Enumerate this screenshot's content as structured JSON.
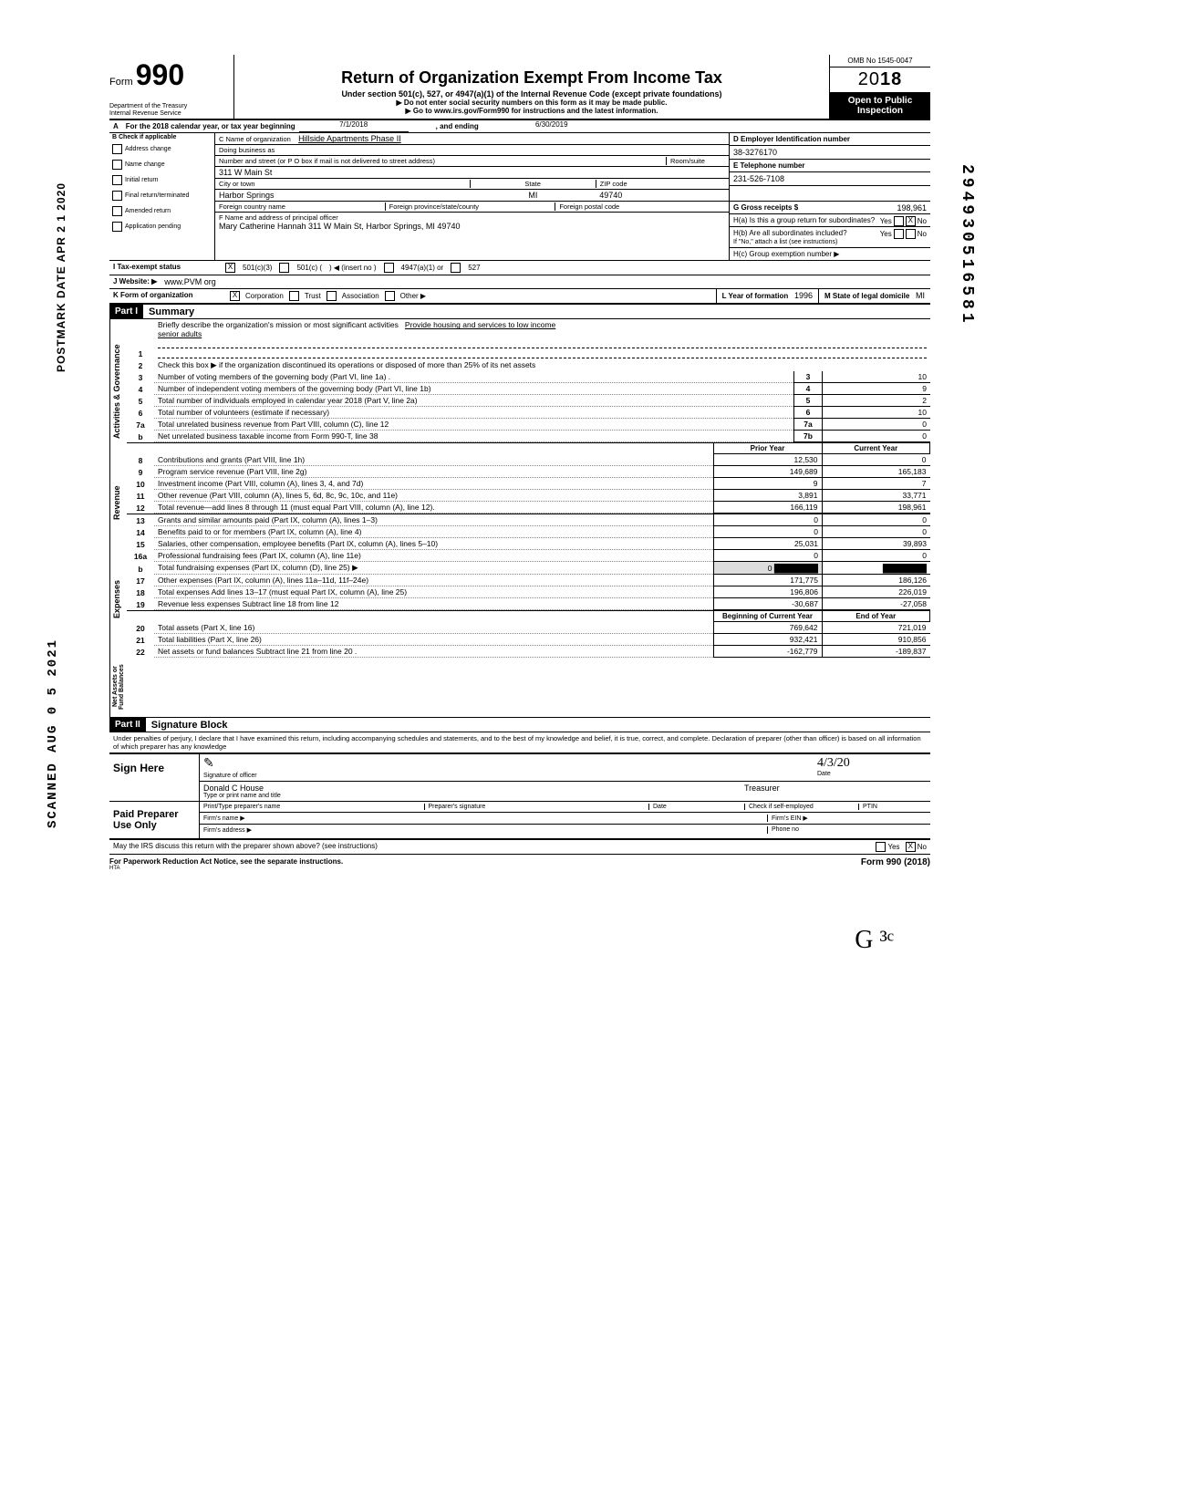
{
  "side": {
    "postmark": "POSTMARK DATE APR 2 1 2020",
    "scanned": "SCANNED AUG 0 5 2021",
    "docid": "294930516581"
  },
  "header": {
    "form_word": "Form",
    "form_num": "990",
    "dept1": "Department of the Treasury",
    "dept2": "Internal Revenue Service",
    "title": "Return of Organization Exempt From Income Tax",
    "subtitle": "Under section 501(c), 527, or 4947(a)(1) of the Internal Revenue Code (except private foundations)",
    "note1": "Do not enter social security numbers on this form as it may be made public.",
    "note2": "Go to www.irs.gov/Form990 for instructions and the latest information.",
    "omb": "OMB No 1545-0047",
    "year_prefix": "20",
    "year_bold": "18",
    "open1": "Open to Public",
    "open2": "Inspection"
  },
  "rowA": {
    "label": "A",
    "text1": "For the 2018 calendar year, or tax year beginning",
    "begin": "7/1/2018",
    "text2": ", and ending",
    "end": "6/30/2019"
  },
  "boxB": {
    "hdr": "B  Check if applicable",
    "items": [
      "Address change",
      "Name change",
      "Initial return",
      "Final return/terminated",
      "Amended return",
      "Application pending"
    ]
  },
  "boxC": {
    "c_label": "C  Name of organization",
    "org": "Hillside Apartments Phase II",
    "dba_label": "Doing business as",
    "street_label": "Number and street (or P O box if mail is not delivered to street address)",
    "room_label": "Room/suite",
    "street": "311 W Main St",
    "city_label": "City or town",
    "state_label": "State",
    "zip_label": "ZIP code",
    "city": "Harbor Springs",
    "state": "MI",
    "zip": "49740",
    "foreign_country": "Foreign country name",
    "foreign_prov": "Foreign province/state/county",
    "foreign_postal": "Foreign postal code",
    "f_label": "F  Name and address of principal officer",
    "officer": "Mary Catherine Hannah 311 W Main St, Harbor Springs, MI  49740"
  },
  "boxD": {
    "d_label": "D   Employer Identification number",
    "ein": "38-3276170",
    "e_label": "E   Telephone number",
    "phone": "231-526-7108",
    "g_label": "G   Gross receipts $",
    "gross": "198,961",
    "ha": "H(a) Is this a group return for subordinates?",
    "hb": "H(b) Are all subordinates included?",
    "hb_note": "If \"No,\" attach a list (see instructions)",
    "hc": "H(c) Group exemption number ▶"
  },
  "rowI": {
    "label": "I    Tax-exempt status",
    "opt1": "501(c)(3)",
    "opt2": "501(c)  (",
    "opt2b": ")  ◀ (insert no )",
    "opt3": "4947(a)(1) or",
    "opt4": "527"
  },
  "rowJ": {
    "label": "J  Website: ▶",
    "val": "www.PVM org"
  },
  "rowK": {
    "label": "K Form of organization",
    "opts": [
      "Corporation",
      "Trust",
      "Association",
      "Other ▶"
    ],
    "l_label": "L Year of formation",
    "l_val": "1996",
    "m_label": "M State of legal domicile",
    "m_val": "MI"
  },
  "part1": {
    "hdr": "Part I",
    "title": "Summary",
    "sections": {
      "gov": "Activities & Governance",
      "rev": "Revenue",
      "exp": "Expenses",
      "net": "Net Assets or Fund Balances"
    },
    "line1": "Briefly describe the organization's mission or most significant activities",
    "line1_val": "Provide housing and services to low income",
    "line1_val2": "senior adults",
    "line2": "Check this box  ▶        if the organization discontinued its operations or disposed of more than 25% of its net assets",
    "rows_gov": [
      {
        "n": "3",
        "t": "Number of voting members of the governing body (Part VI, line 1a) .",
        "c": "3",
        "v": "10"
      },
      {
        "n": "4",
        "t": "Number of independent voting members of the governing body (Part VI, line 1b)",
        "c": "4",
        "v": "9"
      },
      {
        "n": "5",
        "t": "Total number of individuals employed in calendar year 2018 (Part V, line 2a)",
        "c": "5",
        "v": "2"
      },
      {
        "n": "6",
        "t": "Total number of volunteers (estimate if necessary)",
        "c": "6",
        "v": "10"
      },
      {
        "n": "7a",
        "t": "Total unrelated business revenue from Part VIII, column (C), line 12",
        "c": "7a",
        "v": "0"
      },
      {
        "n": "b",
        "t": "Net unrelated business taxable income from Form 990-T, line 38",
        "c": "7b",
        "v": "0"
      }
    ],
    "col_prior": "Prior Year",
    "col_curr": "Current Year",
    "rows_rev": [
      {
        "n": "8",
        "t": "Contributions and grants (Part VIII, line 1h)",
        "p": "12,530",
        "c": "0"
      },
      {
        "n": "9",
        "t": "Program service revenue (Part VIII, line 2g)",
        "p": "149,689",
        "c": "165,183"
      },
      {
        "n": "10",
        "t": "Investment income (Part VIII, column (A), lines 3, 4, and 7d)",
        "p": "9",
        "c": "7"
      },
      {
        "n": "11",
        "t": "Other revenue (Part VIII, column (A), lines 5, 6d, 8c, 9c, 10c, and 11e)",
        "p": "3,891",
        "c": "33,771"
      },
      {
        "n": "12",
        "t": "Total revenue—add lines 8 through 11 (must equal Part VIII, column (A), line 12).",
        "p": "166,119",
        "c": "198,961"
      }
    ],
    "rows_exp": [
      {
        "n": "13",
        "t": "Grants and similar amounts paid (Part IX, column (A), lines 1–3)",
        "p": "0",
        "c": "0"
      },
      {
        "n": "14",
        "t": "Benefits paid to or for members (Part IX, column (A), line 4)",
        "p": "0",
        "c": "0"
      },
      {
        "n": "15",
        "t": "Salaries, other compensation, employee benefits (Part IX, column (A), lines 5–10)",
        "p": "25,031",
        "c": "39,893"
      },
      {
        "n": "16a",
        "t": "Professional fundraising fees (Part IX, column (A), line 11e)",
        "p": "0",
        "c": "0"
      },
      {
        "n": "b",
        "t": "Total fundraising expenses (Part IX, column (D), line 25)  ▶",
        "p": "",
        "c": ""
      },
      {
        "n": "17",
        "t": "Other expenses (Part IX, column (A), lines 11a–11d, 11f–24e)",
        "p": "171,775",
        "c": "186,126"
      },
      {
        "n": "18",
        "t": "Total expenses Add lines 13–17 (must equal Part IX, column (A), line 25)",
        "p": "196,806",
        "c": "226,019"
      },
      {
        "n": "19",
        "t": "Revenue less expenses Subtract line 18 from line 12",
        "p": "-30,687",
        "c": "-27,058"
      }
    ],
    "col_boy": "Beginning of Current Year",
    "col_eoy": "End of Year",
    "rows_net": [
      {
        "n": "20",
        "t": "Total assets (Part X, line 16)",
        "p": "769,642",
        "c": "721,019"
      },
      {
        "n": "21",
        "t": "Total liabilities (Part X, line 26)",
        "p": "932,421",
        "c": "910,856"
      },
      {
        "n": "22",
        "t": "Net assets or fund balances Subtract line 21 from line 20 .",
        "p": "-162,779",
        "c": "-189,837"
      }
    ]
  },
  "part2": {
    "hdr": "Part II",
    "title": "Signature Block",
    "perjury": "Under penalties of perjury, I declare that I have examined this return, including accompanying schedules and statements, and to the best of my knowledge and belief, it is true, correct, and complete. Declaration of preparer (other than officer) is based on all information of which preparer has any knowledge",
    "sign_here": "Sign Here",
    "sig_label": "Signature of officer",
    "date_label": "Date",
    "date_val": "4/3/20",
    "name_label": "Type or print name and title",
    "name_val": "Donald C House",
    "title_val": "Treasurer",
    "paid": "Paid Preparer Use Only",
    "prep_name": "Print/Type preparer's name",
    "prep_sig": "Preparer's signature",
    "prep_date": "Date",
    "check_if": "Check          if self-employed",
    "ptin": "PTIN",
    "firm_name": "Firm's name   ▶",
    "firm_ein": "Firm's EIN ▶",
    "firm_addr": "Firm's address ▶",
    "phone": "Phone no",
    "irs_q": "May the IRS discuss this return with the preparer shown above? (see instructions)",
    "yes": "Yes",
    "no": "No"
  },
  "footer": {
    "left": "For Paperwork Reduction Act Notice, see the separate instructions.",
    "mid": "HTA",
    "right": "Form 990 (2018)"
  },
  "initials": "G ³ᶜ"
}
